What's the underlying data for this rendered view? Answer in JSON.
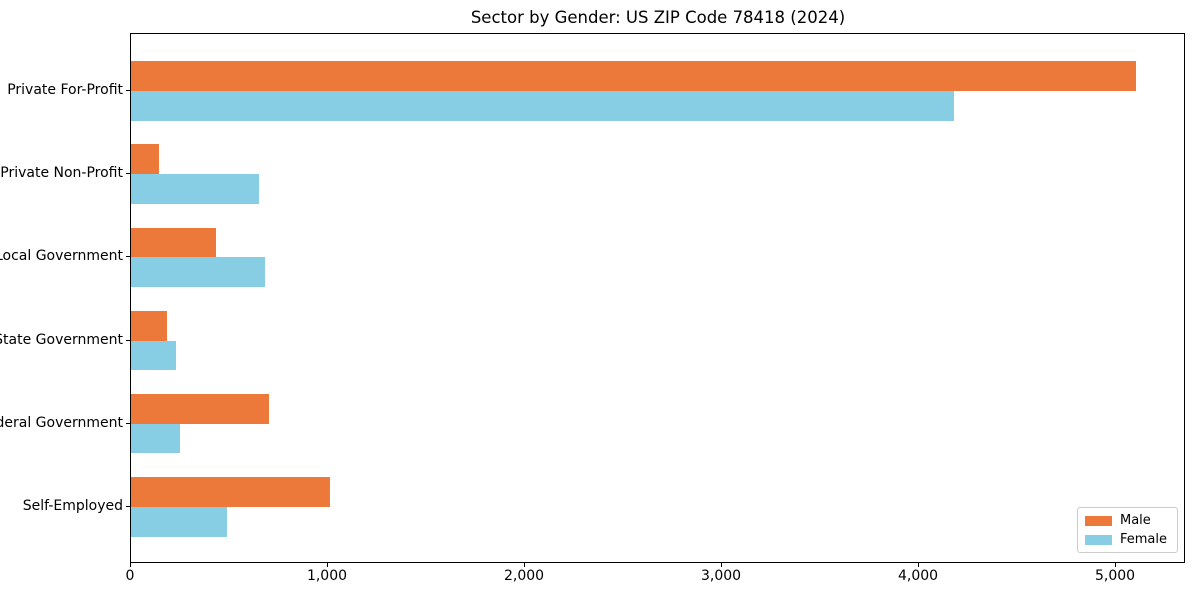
{
  "title": "Sector by Gender: US ZIP Code 78418 (2024)",
  "legend": {
    "position": "lower right",
    "items": [
      {
        "label": "Male",
        "color": "#EC7839"
      },
      {
        "label": "Female",
        "color": "#87CEE4"
      }
    ]
  },
  "chart_data": {
    "type": "bar",
    "orientation": "horizontal",
    "title": "Sector by Gender: US ZIP Code 78418 (2024)",
    "categories": [
      "Private For-Profit",
      "Private Non-Profit",
      "Local Government",
      "State Government",
      "Federal Government",
      "Self-Employed"
    ],
    "series": [
      {
        "name": "Male",
        "color": "#EC7839",
        "values": [
          5110,
          140,
          430,
          185,
          700,
          1010
        ]
      },
      {
        "name": "Female",
        "color": "#87CEE4",
        "values": [
          4185,
          650,
          680,
          230,
          250,
          490
        ]
      }
    ],
    "xlabel": "",
    "ylabel": "",
    "xlim": [
      0,
      5355
    ],
    "x_ticks": {
      "values": [
        0,
        1000,
        2000,
        3000,
        4000,
        5000
      ],
      "labels": [
        "0",
        "1,000",
        "2,000",
        "3,000",
        "4,000",
        "5,000"
      ]
    },
    "grid": false,
    "legend_position": "lower right"
  }
}
